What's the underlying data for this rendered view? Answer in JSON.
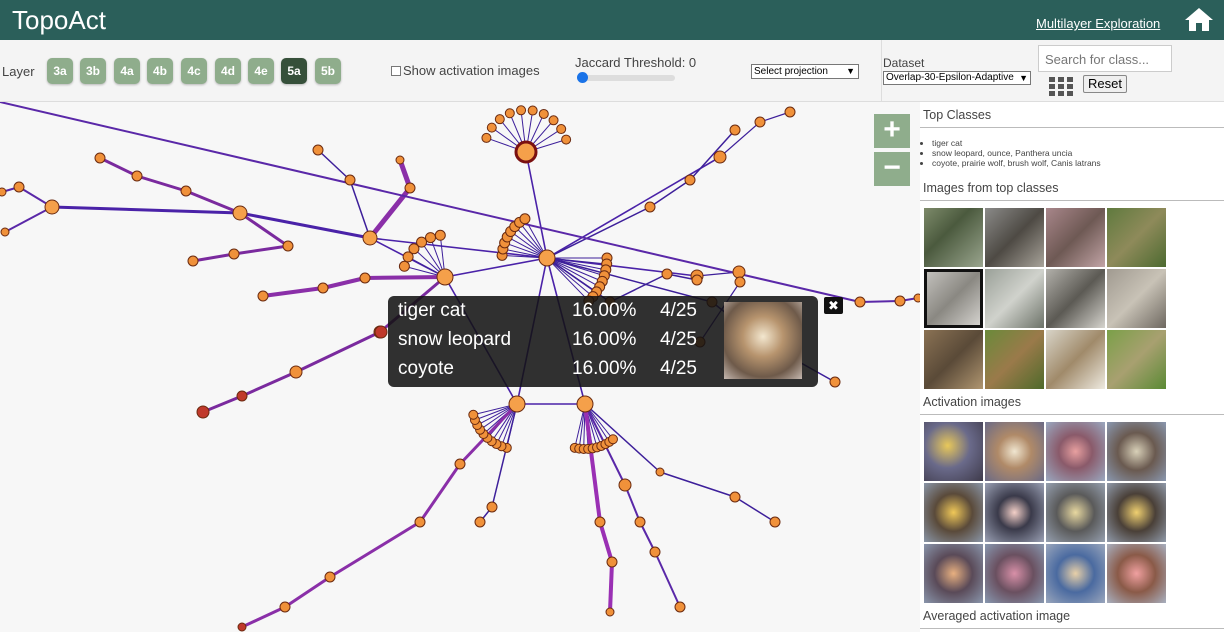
{
  "header": {
    "title": "TopoAct",
    "link": "Multilayer Exploration",
    "home_icon": "home-icon"
  },
  "toolbar": {
    "layer_label": "Layer",
    "layers": [
      "3a",
      "3b",
      "4a",
      "4b",
      "4c",
      "4d",
      "4e",
      "5a",
      "5b"
    ],
    "active_layer": "5a",
    "show_activation_label": "Show activation images",
    "show_activation_checked": false,
    "jaccard_label": "Jaccard Threshold: 0",
    "jaccard_value": 0,
    "projection_select": "Select projection",
    "dataset_label": "Dataset",
    "dataset_value": "Overlap-30-Epsilon-Adaptive",
    "search_placeholder": "Search for class...",
    "reset_label": "Reset"
  },
  "graph": {
    "zoom_in": "+",
    "zoom_out": "−",
    "tooltip": {
      "rows": [
        {
          "name": "tiger cat",
          "percent": "16.00%",
          "count": "4/25"
        },
        {
          "name": "snow leopard",
          "percent": "16.00%",
          "count": "4/25"
        },
        {
          "name": "coyote",
          "percent": "16.00%",
          "count": "4/25"
        }
      ],
      "close": "✖"
    }
  },
  "panel": {
    "top_classes_title": "Top Classes",
    "classes": [
      "tiger cat",
      "snow leopard, ounce, Panthera uncia",
      "coyote, prairie wolf, brush wolf, Canis latrans"
    ],
    "images_title": "Images from top classes",
    "activation_title": "Activation images",
    "averaged_title": "Averaged activation image"
  },
  "colors": {
    "header": "#2b5f5a",
    "layer_button": "#8fad8c",
    "layer_active": "#36503a",
    "node": "#f0913a",
    "edge": "#4b1fa0"
  }
}
